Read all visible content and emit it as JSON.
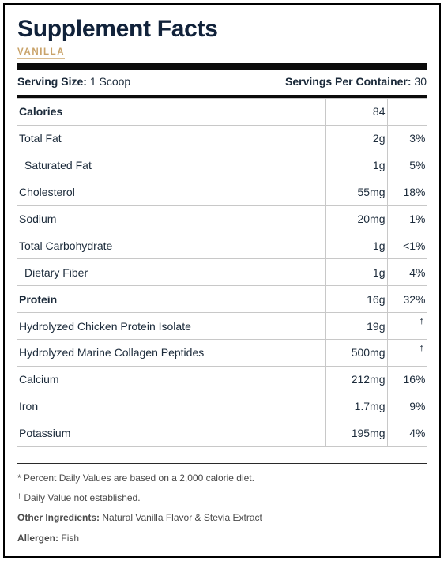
{
  "label": {
    "title": "Supplement Facts",
    "flavor": "VANILLA",
    "serving_size_label": "Serving Size:",
    "serving_size_value": "1 Scoop",
    "servings_per_container_label": "Servings Per Container:",
    "servings_per_container_value": "30"
  },
  "rows": [
    {
      "name": "Calories",
      "amount": "84",
      "dv": ""
    },
    {
      "name": "Total Fat",
      "amount": "2g",
      "dv": "3%"
    },
    {
      "name": "Saturated Fat",
      "amount": "1g",
      "dv": "5%"
    },
    {
      "name": "Cholesterol",
      "amount": "55mg",
      "dv": "18%"
    },
    {
      "name": "Sodium",
      "amount": "20mg",
      "dv": "1%"
    },
    {
      "name": "Total Carbohydrate",
      "amount": "1g",
      "dv": "<1%"
    },
    {
      "name": "Dietary Fiber",
      "amount": "1g",
      "dv": "4%"
    },
    {
      "name": "Protein",
      "amount": "16g",
      "dv": "32%"
    },
    {
      "name": "Hydrolyzed Chicken Protein Isolate",
      "amount": "19g",
      "dv": "†"
    },
    {
      "name": "Hydrolyzed Marine Collagen Peptides",
      "amount": "500mg",
      "dv": "†"
    },
    {
      "name": "Calcium",
      "amount": "212mg",
      "dv": "16%"
    },
    {
      "name": "Iron",
      "amount": "1.7mg",
      "dv": "9%"
    },
    {
      "name": "Potassium",
      "amount": "195mg",
      "dv": "4%"
    }
  ],
  "footnotes": {
    "percent_dv_symbol": "*",
    "percent_dv_text": "Percent Daily Values are based on a 2,000 calorie diet.",
    "not_established_symbol": "†",
    "not_established_text": "Daily Value not established.",
    "other_ingredients_label": "Other Ingredients:",
    "other_ingredients_value": "Natural Vanilla Flavor & Stevia Extract",
    "allergen_label": "Allergen:",
    "allergen_value": "Fish"
  },
  "colors": {
    "title": "#11223a",
    "flavor_accent": "#c9a36a",
    "rule": "#0b0b0b",
    "grid": "#c8c8c8",
    "footnote_text": "#4a4a4a"
  }
}
